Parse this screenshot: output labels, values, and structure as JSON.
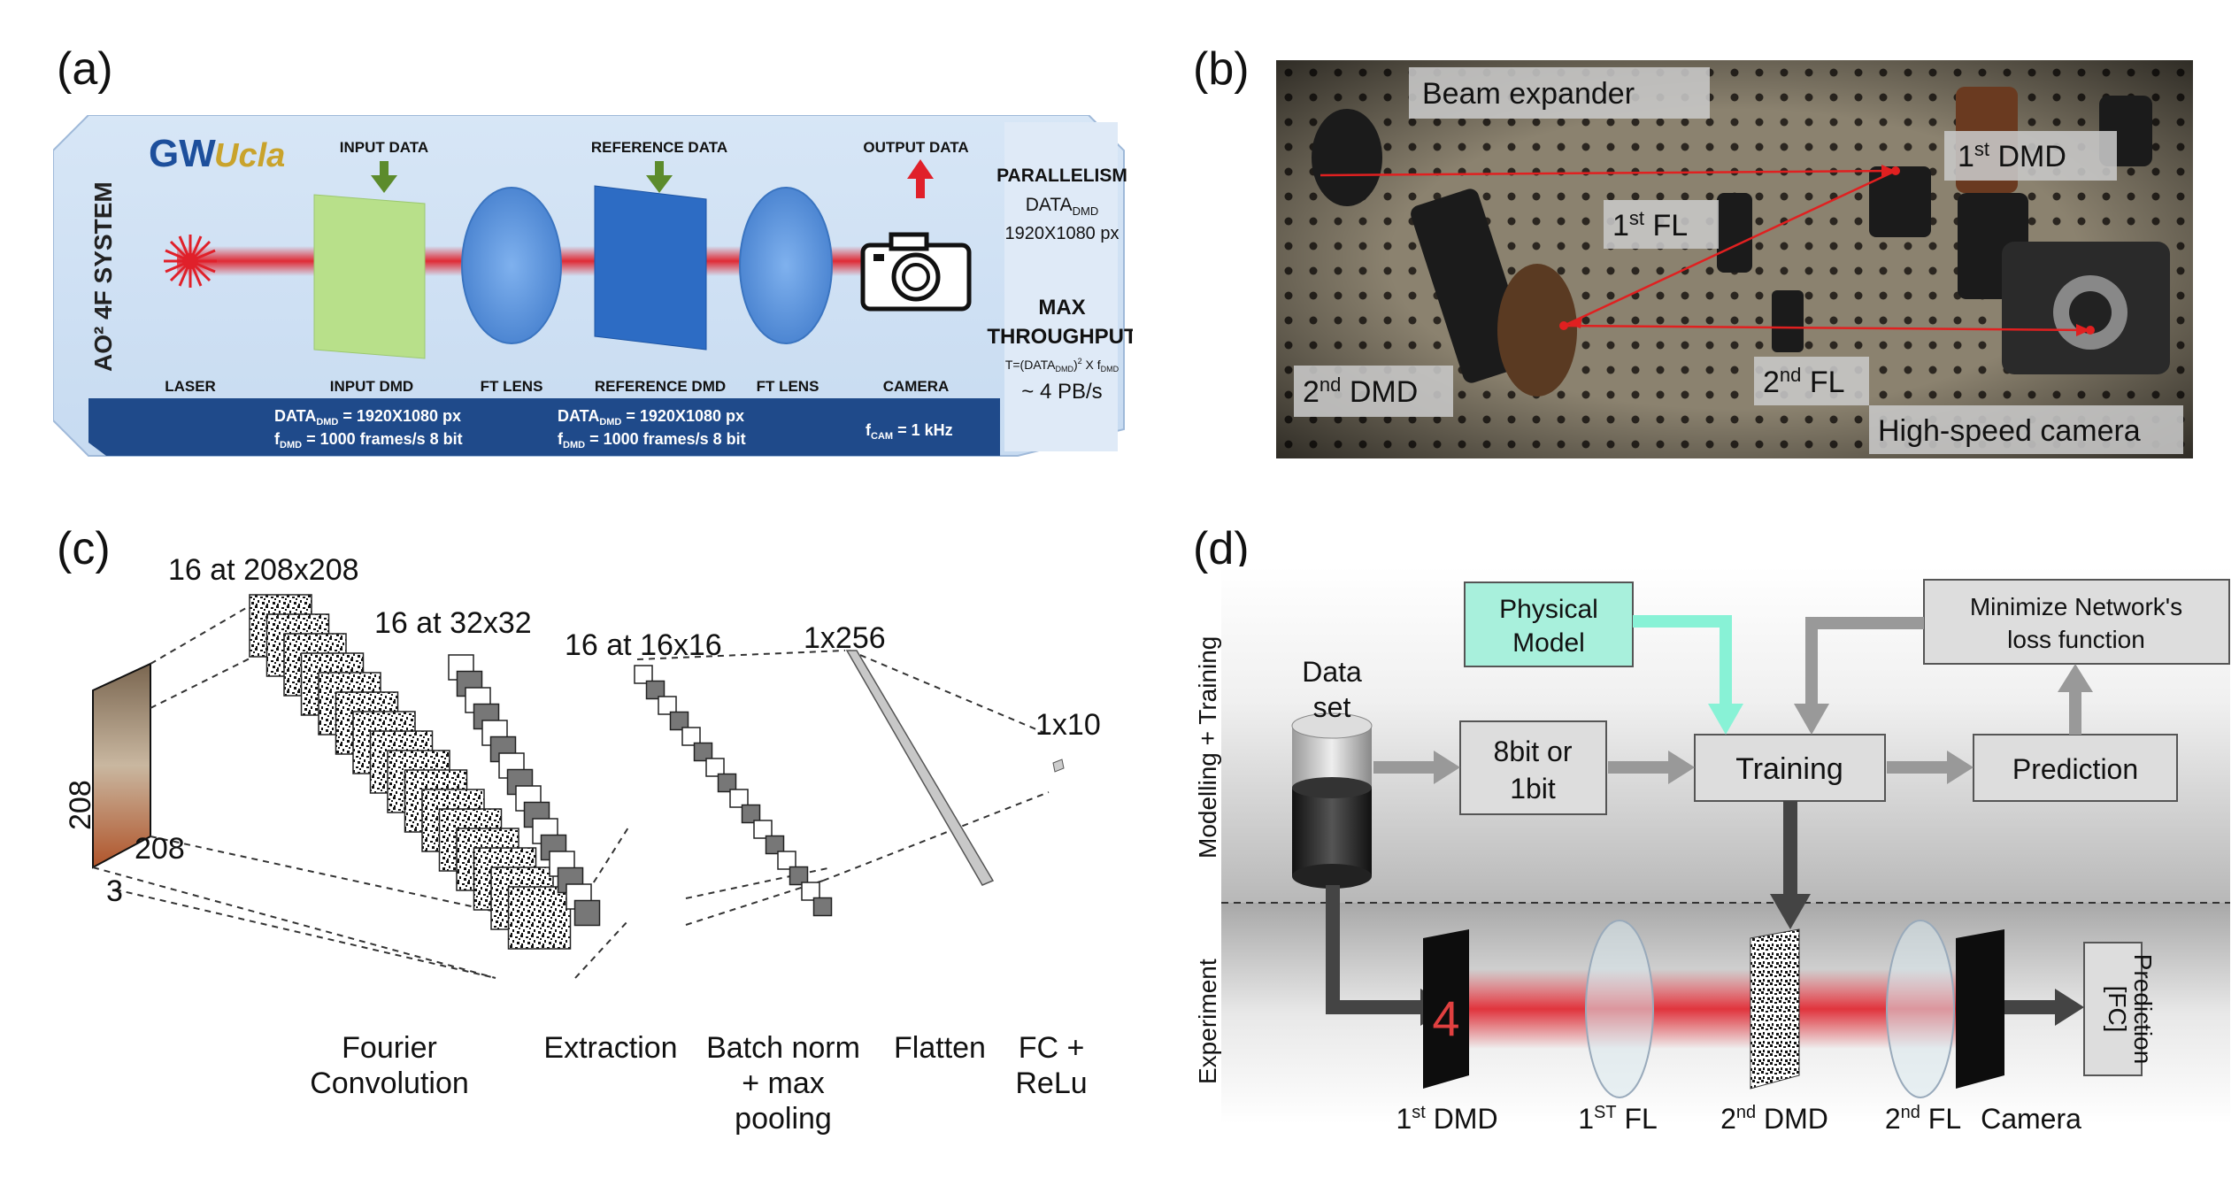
{
  "panels": {
    "a": {
      "label": "(a)",
      "system": "AO² 4F SYSTEM",
      "logos": {
        "gw": "GW",
        "ucla": "Ucla"
      },
      "input_data": "INPUT DATA",
      "reference_data": "REFERENCE DATA",
      "output_data": "OUTPUT DATA",
      "components": [
        "LASER",
        "INPUT DMD",
        "FT LENS",
        "REFERENCE DMD",
        "FT LENS",
        "CAMERA"
      ],
      "specs": {
        "dmd1_line1": "DATA",
        "dmd1_sub1": "DMD",
        "dmd1_val1": " = 1920X1080 px",
        "dmd1_line2": "f",
        "dmd1_sub2": "DMD",
        "dmd1_val2": " = 1000 frames/s 8 bit",
        "dmd2_line1": "DATA",
        "dmd2_sub1": "DMD",
        "dmd2_val1": " = 1920X1080 px",
        "dmd2_line2": "f",
        "dmd2_sub2": "DMD",
        "dmd2_val2": " = 1000 frames/s 8 bit",
        "cam": "f",
        "cam_sub": "CAM",
        "cam_val": " = 1 kHz"
      },
      "side": {
        "parallelism": "PARALLELISM",
        "data": "DATA",
        "data_sub": "DMD",
        "resolution": "1920X1080 px",
        "max": "MAX",
        "throughput": "THROUGHPUT",
        "formula_a": "T=(DATA",
        "formula_sub": "DMD",
        "formula_b": ")",
        "formula_sup": "2",
        "formula_c": " X f",
        "formula_sub2": "DMD",
        "value": "~ 4 PB/s"
      }
    },
    "b": {
      "label": "(b)",
      "labels": {
        "beam_expander": "Beam expander",
        "dmd1": "1",
        "dmd1_sup": "st",
        "dmd1_rest": " DMD",
        "fl1": "1",
        "fl1_sup": "st",
        "fl1_rest": " FL",
        "dmd2": "2",
        "dmd2_sup": "nd",
        "dmd2_rest": " DMD",
        "fl2": "2",
        "fl2_sup": "nd",
        "fl2_rest": " FL",
        "camera": "High-speed camera"
      }
    },
    "c": {
      "label": "(c)",
      "dims": {
        "l1": "16 at 208x208",
        "l2": "16 at 32x32",
        "l3": "16 at 16x16",
        "l4": "1x256",
        "l5": "1x10",
        "h": "208",
        "w": "208",
        "d": "3"
      },
      "stages": {
        "s1a": "Fourier",
        "s1b": "Convolution",
        "s2": "Extraction",
        "s3a": "Batch norm",
        "s3b": "+ max",
        "s3c": "pooling",
        "s4": "Flatten",
        "s5a": "FC +",
        "s5b": "ReLu"
      }
    },
    "d": {
      "label": "(d)",
      "side_top": "Modelling + Training",
      "side_bottom": "Experiment",
      "dataset_a": "Data",
      "dataset_b": "set",
      "physical_a": "Physical",
      "physical_b": "Model",
      "minimize_a": "Minimize Network's",
      "minimize_b": "loss function",
      "bits_a": "8bit or",
      "bits_b": "1bit",
      "training": "Training",
      "prediction": "Prediction",
      "fc_a": "[FC]",
      "fc_b": "Prediction",
      "digit": "4",
      "bottom": {
        "dmd1": "1",
        "dmd1_sup": "st",
        "dmd1_rest": " DMD",
        "fl1": "1",
        "fl1_sup": "ST",
        "fl1_rest": " FL",
        "dmd2": "2",
        "dmd2_sup": "nd",
        "dmd2_rest": " DMD",
        "fl2": "2",
        "fl2_sup": "nd",
        "fl2_rest": " FL",
        "camera": "Camera"
      }
    }
  },
  "colors": {
    "laser": "#e0202a",
    "lens": "#5b95db",
    "input_dmd": "#b8e08a",
    "ref_dmd": "#2d6cc4",
    "band": "#1f4a8a",
    "physical": "#a8f0dc"
  }
}
